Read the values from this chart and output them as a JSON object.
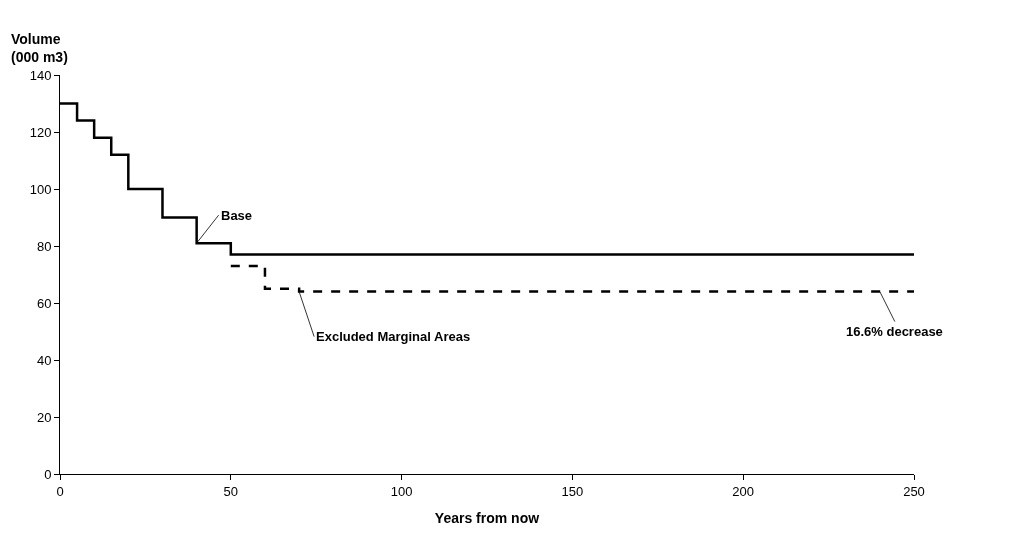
{
  "chart_data": {
    "type": "step",
    "xlabel": "Years from now",
    "ylabel": "Volume\n(000 m3)",
    "xlim": [
      0,
      250
    ],
    "xticks": [
      0,
      50,
      100,
      150,
      200,
      250
    ],
    "ylim": [
      0,
      140
    ],
    "yticks": [
      0,
      20,
      40,
      60,
      80,
      100,
      120,
      140
    ],
    "marker": "none",
    "series": [
      {
        "name": "Base",
        "color": "#000000",
        "line_style": "solid",
        "x": [
          0,
          5,
          10,
          15,
          20,
          30,
          40,
          50,
          250
        ],
        "values": [
          130,
          124,
          118,
          112,
          100,
          90,
          81,
          77,
          77
        ]
      },
      {
        "name": "Excluded Marginal Areas",
        "color": "#000000",
        "line_style": "dashed",
        "x": [
          50,
          60,
          70,
          250
        ],
        "values": [
          73,
          65,
          64,
          64
        ]
      }
    ],
    "annotations": [
      {
        "text": "16.6% decrease",
        "x": 240,
        "y": 64
      }
    ]
  }
}
